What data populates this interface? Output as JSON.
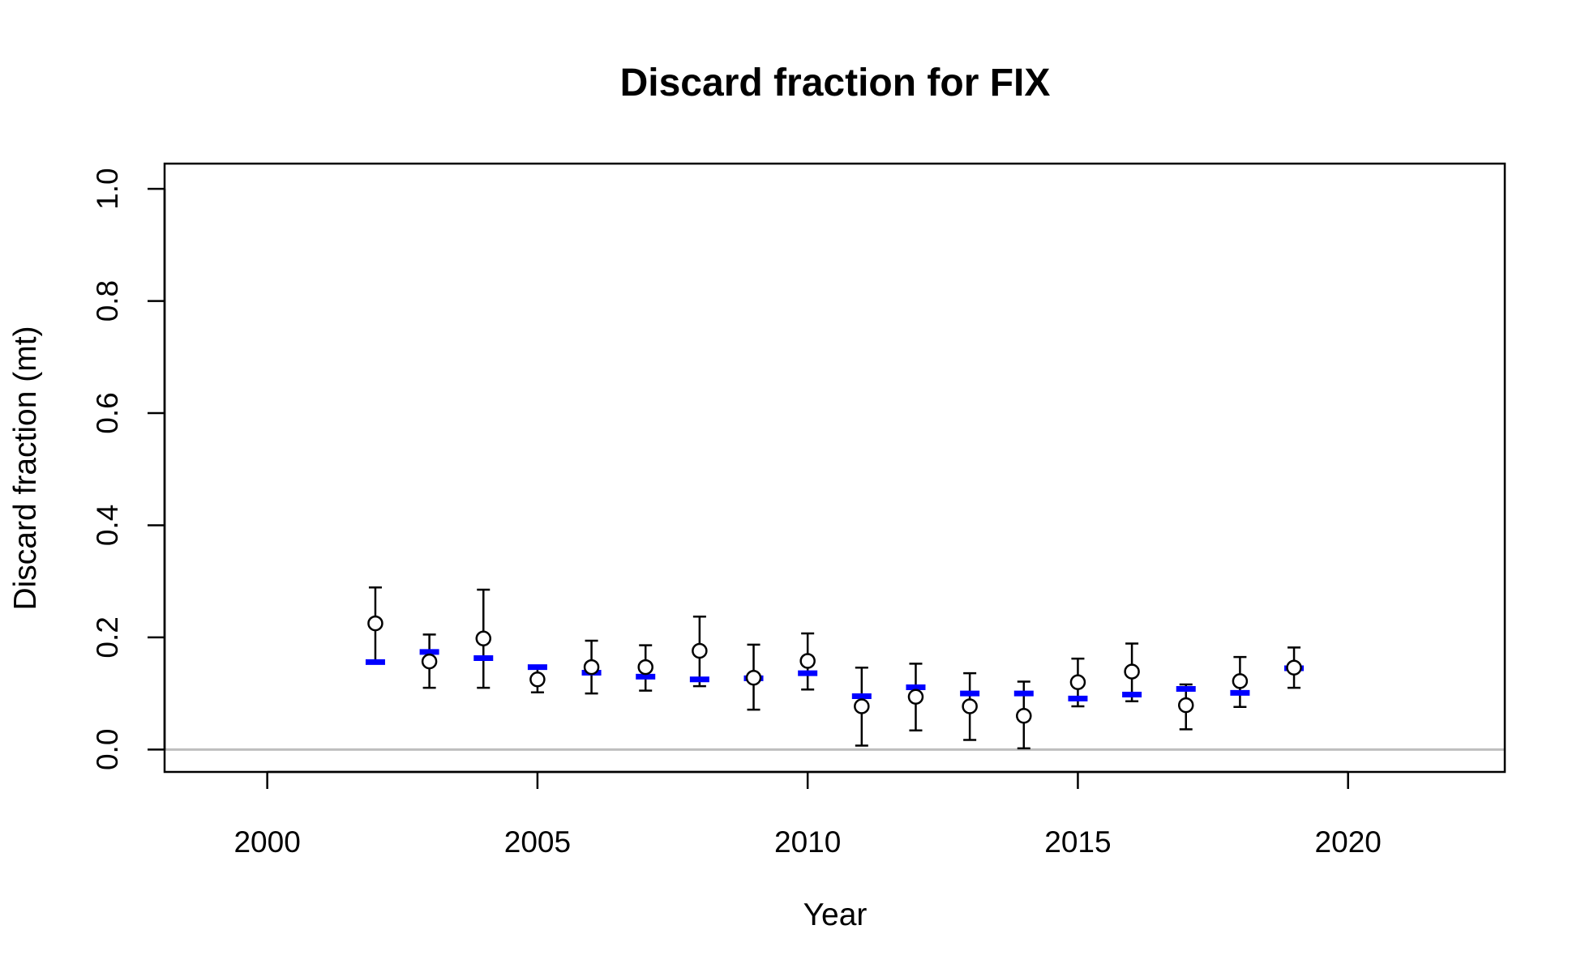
{
  "chart_data": {
    "type": "scatter",
    "title": "Discard fraction for FIX",
    "xlabel": "Year",
    "ylabel": "Discard fraction (mt)",
    "xlim": [
      1998.1,
      2022.9
    ],
    "ylim": [
      -0.04,
      1.045
    ],
    "xticks": [
      2000,
      2005,
      2010,
      2015,
      2020
    ],
    "xtick_labels": [
      "2000",
      "2005",
      "2010",
      "2015",
      "2020"
    ],
    "yticks": [
      0.0,
      0.2,
      0.4,
      0.6,
      0.8,
      1.0
    ],
    "ytick_labels": [
      "0.0",
      "0.2",
      "0.4",
      "0.6",
      "0.8",
      "1.0"
    ],
    "grid": false,
    "reference_line": {
      "y": 0,
      "color": "#bebebe"
    },
    "series": [
      {
        "kind": "observed",
        "marker": "open-circle",
        "color": "#000000",
        "x": [
          2002,
          2003,
          2004,
          2005,
          2006,
          2007,
          2008,
          2009,
          2010,
          2011,
          2012,
          2013,
          2014,
          2015,
          2016,
          2017,
          2018,
          2019
        ],
        "values": [
          0.225,
          0.157,
          0.198,
          0.125,
          0.147,
          0.147,
          0.176,
          0.128,
          0.158,
          0.077,
          0.094,
          0.077,
          0.06,
          0.12,
          0.139,
          0.079,
          0.122,
          0.146
        ],
        "lower": [
          0.155,
          0.11,
          0.11,
          0.102,
          0.1,
          0.105,
          0.113,
          0.071,
          0.107,
          0.007,
          0.034,
          0.017,
          0.002,
          0.077,
          0.086,
          0.036,
          0.076,
          0.11
        ],
        "upper": [
          0.289,
          0.205,
          0.285,
          0.148,
          0.194,
          0.186,
          0.237,
          0.187,
          0.207,
          0.146,
          0.153,
          0.136,
          0.121,
          0.162,
          0.189,
          0.116,
          0.165,
          0.182
        ]
      },
      {
        "kind": "expected",
        "marker": "dash",
        "color": "#0000ff",
        "x": [
          2002,
          2003,
          2004,
          2005,
          2006,
          2007,
          2008,
          2009,
          2010,
          2011,
          2012,
          2013,
          2014,
          2015,
          2016,
          2017,
          2018,
          2019
        ],
        "values": [
          0.156,
          0.174,
          0.163,
          0.147,
          0.137,
          0.13,
          0.125,
          0.127,
          0.136,
          0.095,
          0.111,
          0.1,
          0.1,
          0.091,
          0.098,
          0.108,
          0.101,
          0.145
        ]
      }
    ]
  }
}
